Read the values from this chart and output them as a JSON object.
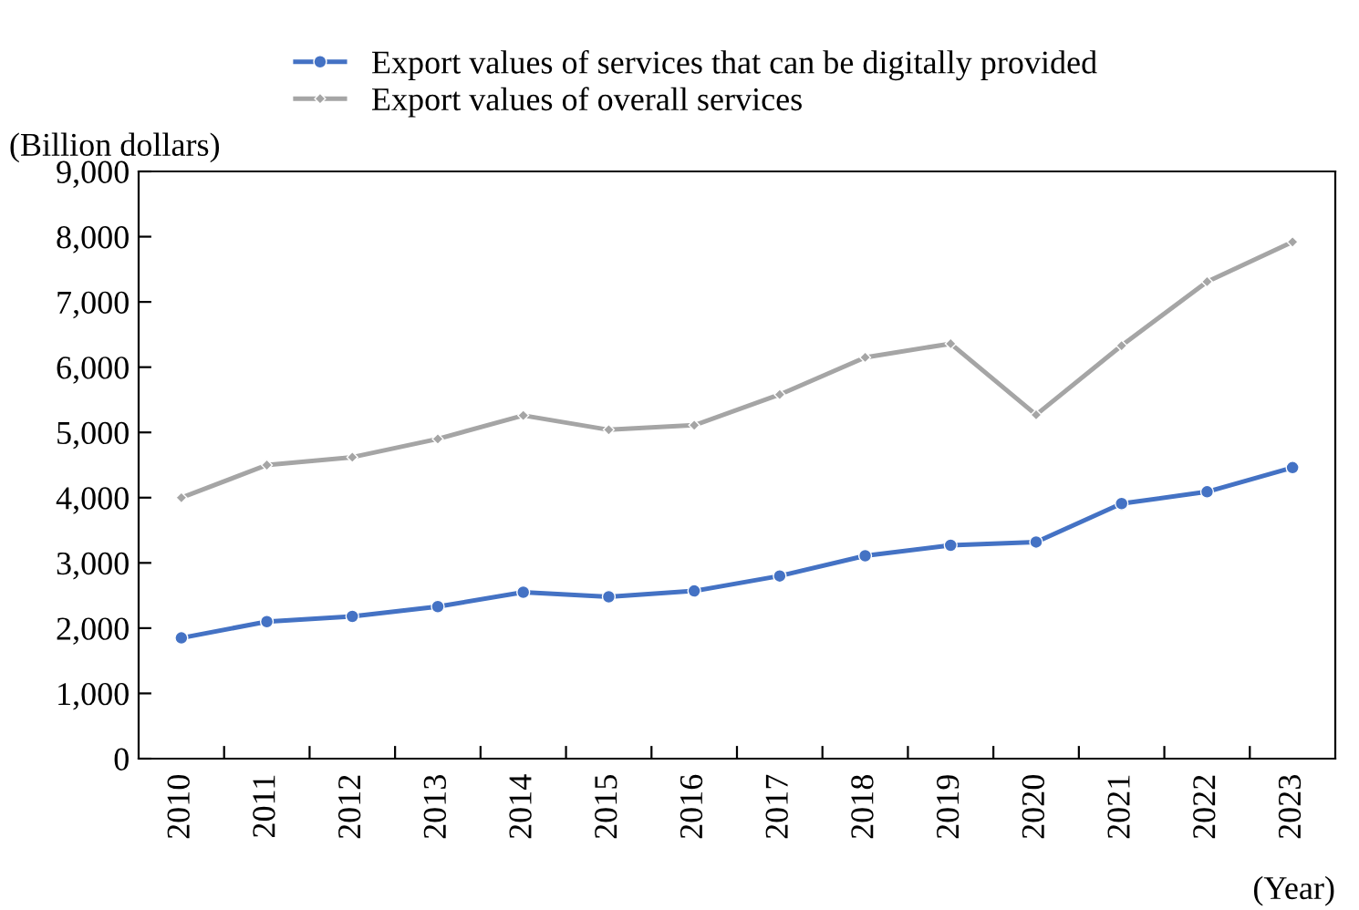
{
  "chart_data": {
    "type": "line",
    "ylabel": "(Billion dollars)",
    "xlabel": "(Year)",
    "categories": [
      "2010",
      "2011",
      "2012",
      "2013",
      "2014",
      "2015",
      "2016",
      "2017",
      "2018",
      "2019",
      "2020",
      "2021",
      "2022",
      "2023"
    ],
    "series": [
      {
        "name": "Export values of services that can be digitally provided",
        "color": "#4472c4",
        "marker": "circle",
        "values": [
          1850,
          2100,
          2180,
          2330,
          2550,
          2480,
          2570,
          2800,
          3110,
          3270,
          3320,
          3910,
          4090,
          4460
        ]
      },
      {
        "name": "Export values of overall services",
        "color": "#a5a5a5",
        "marker": "diamond",
        "values": [
          4000,
          4500,
          4620,
          4900,
          5260,
          5040,
          5110,
          5580,
          6150,
          6360,
          5270,
          6330,
          7310,
          7920
        ]
      }
    ],
    "ylim": [
      0,
      9000
    ],
    "yticks": [
      {
        "value": 0,
        "label": "0"
      },
      {
        "value": 1000,
        "label": "1,000"
      },
      {
        "value": 2000,
        "label": "2,000"
      },
      {
        "value": 3000,
        "label": "3,000"
      },
      {
        "value": 4000,
        "label": "4,000"
      },
      {
        "value": 5000,
        "label": "5,000"
      },
      {
        "value": 6000,
        "label": "6,000"
      },
      {
        "value": 7000,
        "label": "7,000"
      },
      {
        "value": 8000,
        "label": "8,000"
      },
      {
        "value": 9000,
        "label": "9,000"
      }
    ],
    "grid": false,
    "legend": "top",
    "line_style": "solid"
  }
}
